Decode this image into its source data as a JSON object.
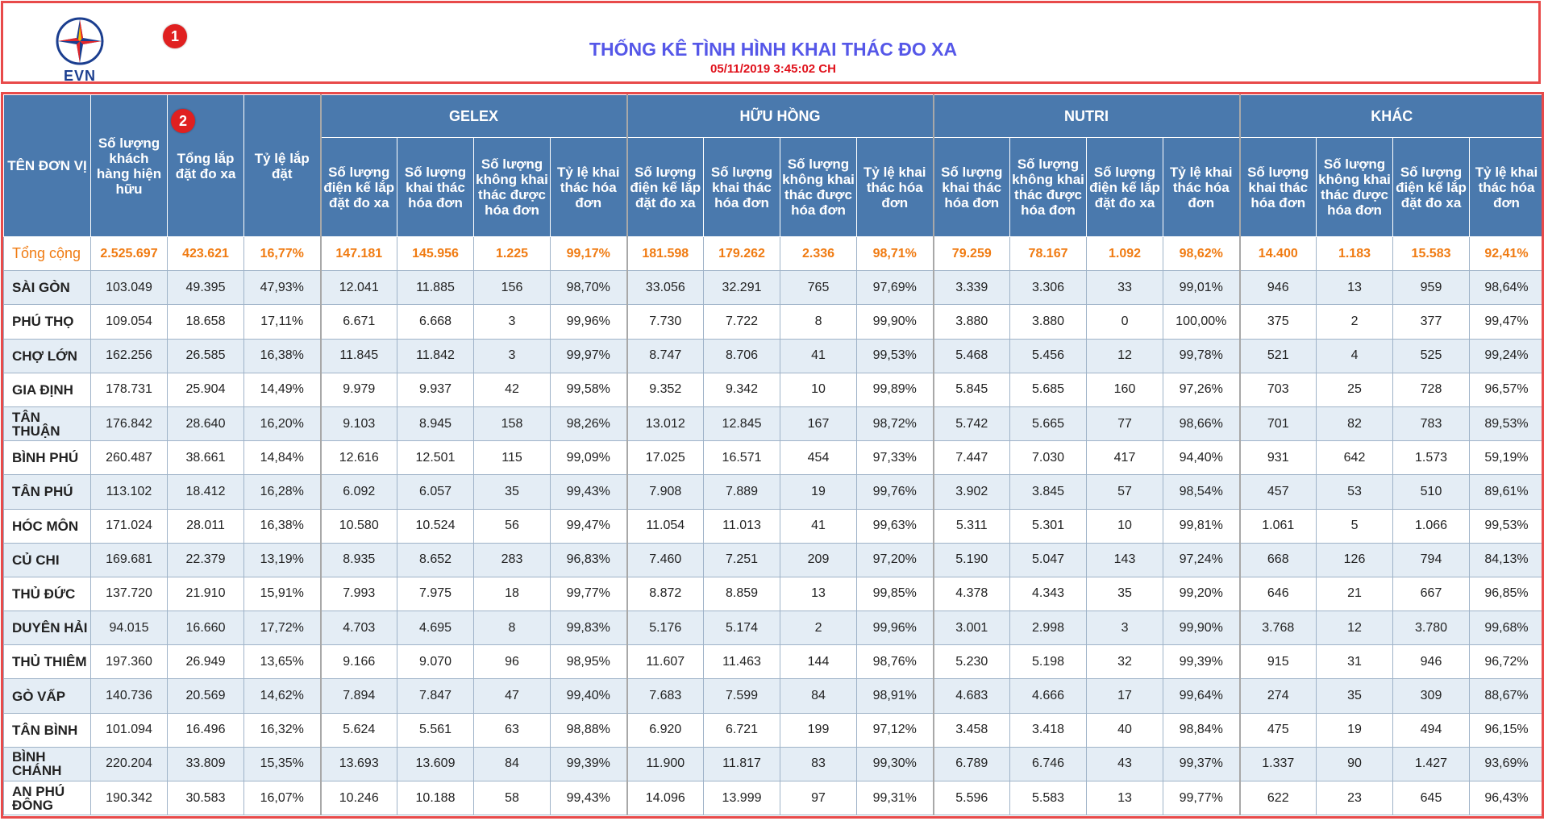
{
  "header": {
    "logo_text": "EVN",
    "title": "THỐNG KÊ TÌNH HÌNH KHAI THÁC ĐO XA",
    "timestamp": "05/11/2019 3:45:02 CH",
    "marker1": "1",
    "marker2": "2"
  },
  "colors": {
    "header_bg": "#4a79ad",
    "total_text": "#f07b12",
    "title": "#5557e8",
    "timestamp": "#e0101a",
    "highlight_border": "#e84a4a"
  },
  "table": {
    "col_unit": "TÊN ĐƠN VỊ",
    "col_customers": "Số lượng khách hàng hiện hữu",
    "col_installed": "Tổng lắp đặt đo xa",
    "col_rate": "Tỷ lệ lắp đặt",
    "groups": [
      "GELEX",
      "HỮU HỒNG",
      "NUTRI",
      "KHÁC"
    ],
    "sub_gelex": [
      "Số lượng điện kế lắp đặt đo xa",
      "Số lượng khai thác hóa đơn",
      "Số lượng không khai thác được hóa đơn",
      "Tỷ lệ khai thác hóa đơn"
    ],
    "sub_huuhong": [
      "Số lượng điện kế lắp đặt đo xa",
      "Số lượng khai thác hóa đơn",
      "Số lượng không khai thác được hóa đơn",
      "Tỷ lệ khai thác hóa đơn"
    ],
    "sub_nutri": [
      "Số lượng khai thác hóa đơn",
      "Số lượng không khai thác được hóa đơn",
      "Số lượng điện kế lắp đặt đo xa",
      "Tỷ lệ khai thác hóa đơn"
    ],
    "sub_khac": [
      "Số lượng khai thác hóa đơn",
      "Số lượng không khai thác được hóa đơn",
      "Số lượng điện kế lắp đặt đo xa",
      "Tỷ lệ khai thác hóa đơn"
    ],
    "rows": [
      [
        "Tổng cộng",
        "2.525.697",
        "423.621",
        "16,77%",
        "147.181",
        "145.956",
        "1.225",
        "99,17%",
        "181.598",
        "179.262",
        "2.336",
        "98,71%",
        "79.259",
        "78.167",
        "1.092",
        "98,62%",
        "14.400",
        "1.183",
        "15.583",
        "92,41%"
      ],
      [
        "SÀI GÒN",
        "103.049",
        "49.395",
        "47,93%",
        "12.041",
        "11.885",
        "156",
        "98,70%",
        "33.056",
        "32.291",
        "765",
        "97,69%",
        "3.339",
        "3.306",
        "33",
        "99,01%",
        "946",
        "13",
        "959",
        "98,64%"
      ],
      [
        "PHÚ THỌ",
        "109.054",
        "18.658",
        "17,11%",
        "6.671",
        "6.668",
        "3",
        "99,96%",
        "7.730",
        "7.722",
        "8",
        "99,90%",
        "3.880",
        "3.880",
        "0",
        "100,00%",
        "375",
        "2",
        "377",
        "99,47%"
      ],
      [
        "CHỢ LỚN",
        "162.256",
        "26.585",
        "16,38%",
        "11.845",
        "11.842",
        "3",
        "99,97%",
        "8.747",
        "8.706",
        "41",
        "99,53%",
        "5.468",
        "5.456",
        "12",
        "99,78%",
        "521",
        "4",
        "525",
        "99,24%"
      ],
      [
        "GIA ĐỊNH",
        "178.731",
        "25.904",
        "14,49%",
        "9.979",
        "9.937",
        "42",
        "99,58%",
        "9.352",
        "9.342",
        "10",
        "99,89%",
        "5.845",
        "5.685",
        "160",
        "97,26%",
        "703",
        "25",
        "728",
        "96,57%"
      ],
      [
        "TÂN THUẬN",
        "176.842",
        "28.640",
        "16,20%",
        "9.103",
        "8.945",
        "158",
        "98,26%",
        "13.012",
        "12.845",
        "167",
        "98,72%",
        "5.742",
        "5.665",
        "77",
        "98,66%",
        "701",
        "82",
        "783",
        "89,53%"
      ],
      [
        "BÌNH PHÚ",
        "260.487",
        "38.661",
        "14,84%",
        "12.616",
        "12.501",
        "115",
        "99,09%",
        "17.025",
        "16.571",
        "454",
        "97,33%",
        "7.447",
        "7.030",
        "417",
        "94,40%",
        "931",
        "642",
        "1.573",
        "59,19%"
      ],
      [
        "TÂN PHÚ",
        "113.102",
        "18.412",
        "16,28%",
        "6.092",
        "6.057",
        "35",
        "99,43%",
        "7.908",
        "7.889",
        "19",
        "99,76%",
        "3.902",
        "3.845",
        "57",
        "98,54%",
        "457",
        "53",
        "510",
        "89,61%"
      ],
      [
        "HÓC MÔN",
        "171.024",
        "28.011",
        "16,38%",
        "10.580",
        "10.524",
        "56",
        "99,47%",
        "11.054",
        "11.013",
        "41",
        "99,63%",
        "5.311",
        "5.301",
        "10",
        "99,81%",
        "1.061",
        "5",
        "1.066",
        "99,53%"
      ],
      [
        "CỦ CHI",
        "169.681",
        "22.379",
        "13,19%",
        "8.935",
        "8.652",
        "283",
        "96,83%",
        "7.460",
        "7.251",
        "209",
        "97,20%",
        "5.190",
        "5.047",
        "143",
        "97,24%",
        "668",
        "126",
        "794",
        "84,13%"
      ],
      [
        "THỦ ĐỨC",
        "137.720",
        "21.910",
        "15,91%",
        "7.993",
        "7.975",
        "18",
        "99,77%",
        "8.872",
        "8.859",
        "13",
        "99,85%",
        "4.378",
        "4.343",
        "35",
        "99,20%",
        "646",
        "21",
        "667",
        "96,85%"
      ],
      [
        "DUYÊN HẢI",
        "94.015",
        "16.660",
        "17,72%",
        "4.703",
        "4.695",
        "8",
        "99,83%",
        "5.176",
        "5.174",
        "2",
        "99,96%",
        "3.001",
        "2.998",
        "3",
        "99,90%",
        "3.768",
        "12",
        "3.780",
        "99,68%"
      ],
      [
        "THỦ THIÊM",
        "197.360",
        "26.949",
        "13,65%",
        "9.166",
        "9.070",
        "96",
        "98,95%",
        "11.607",
        "11.463",
        "144",
        "98,76%",
        "5.230",
        "5.198",
        "32",
        "99,39%",
        "915",
        "31",
        "946",
        "96,72%"
      ],
      [
        "GÒ VẤP",
        "140.736",
        "20.569",
        "14,62%",
        "7.894",
        "7.847",
        "47",
        "99,40%",
        "7.683",
        "7.599",
        "84",
        "98,91%",
        "4.683",
        "4.666",
        "17",
        "99,64%",
        "274",
        "35",
        "309",
        "88,67%"
      ],
      [
        "TÂN BÌNH",
        "101.094",
        "16.496",
        "16,32%",
        "5.624",
        "5.561",
        "63",
        "98,88%",
        "6.920",
        "6.721",
        "199",
        "97,12%",
        "3.458",
        "3.418",
        "40",
        "98,84%",
        "475",
        "19",
        "494",
        "96,15%"
      ],
      [
        "BÌNH CHÁNH",
        "220.204",
        "33.809",
        "15,35%",
        "13.693",
        "13.609",
        "84",
        "99,39%",
        "11.900",
        "11.817",
        "83",
        "99,30%",
        "6.789",
        "6.746",
        "43",
        "99,37%",
        "1.337",
        "90",
        "1.427",
        "93,69%"
      ],
      [
        "AN PHÚ ĐÔNG",
        "190.342",
        "30.583",
        "16,07%",
        "10.246",
        "10.188",
        "58",
        "99,43%",
        "14.096",
        "13.999",
        "97",
        "99,31%",
        "5.596",
        "5.583",
        "13",
        "99,77%",
        "622",
        "23",
        "645",
        "96,43%"
      ]
    ]
  }
}
